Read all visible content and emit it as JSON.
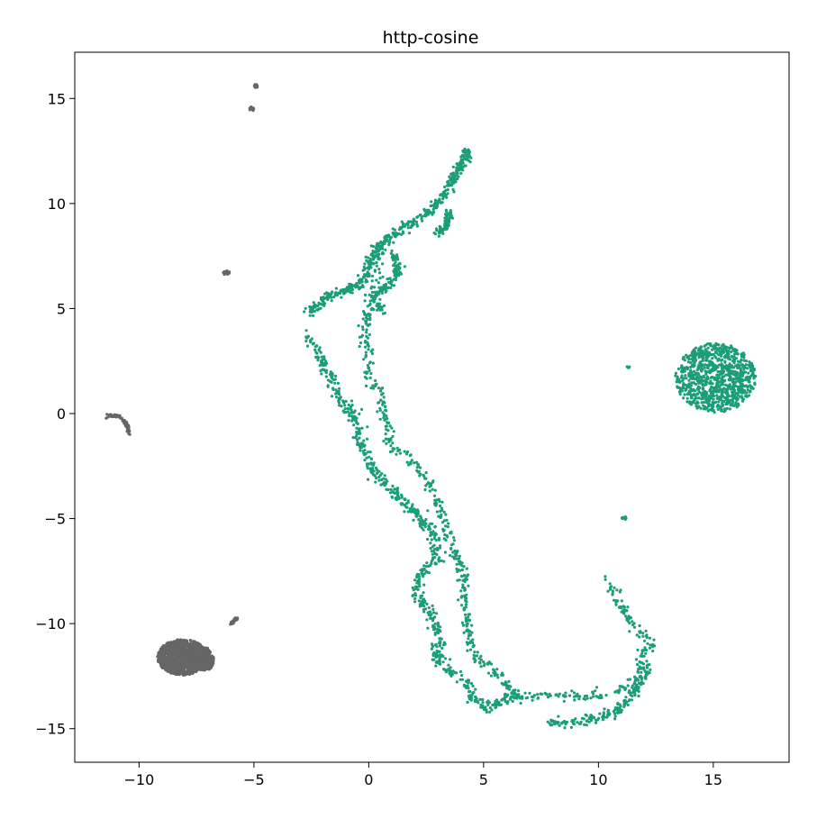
{
  "chart_data": {
    "type": "scatter",
    "title": "http-cosine",
    "xlabel": "",
    "ylabel": "",
    "xlim": [
      -12.8,
      18.3
    ],
    "ylim": [
      -16.6,
      17.2
    ],
    "x_ticks": [
      -10,
      -5,
      0,
      5,
      10,
      15
    ],
    "x_tick_labels": [
      "−10",
      "−5",
      "0",
      "5",
      "10",
      "15"
    ],
    "y_ticks": [
      -15,
      -10,
      -5,
      0,
      5,
      10,
      15
    ],
    "y_tick_labels": [
      "−15",
      "−10",
      "−5",
      "0",
      "5",
      "10",
      "15"
    ],
    "grid": false,
    "legend": "none",
    "colors": {
      "green": "#1b9e77",
      "gray": "#666666"
    },
    "series": [
      {
        "color": "#1b9e77",
        "clusters": [
          {
            "shape": "blob",
            "center": [
              15.1,
              1.7
            ],
            "radius": [
              1.75,
              1.65
            ],
            "points": 900
          },
          {
            "shape": "blob",
            "center": [
              11.1,
              -5.0
            ],
            "radius": [
              0.15,
              0.1
            ],
            "points": 10
          },
          {
            "shape": "blob",
            "center": [
              11.3,
              2.2
            ],
            "radius": [
              0.08,
              0.05
            ],
            "points": 4
          },
          {
            "shape": "curve",
            "points": 480,
            "spread": 0.18,
            "path": [
              [
                4.4,
                12.6
              ],
              [
                3.6,
                11.0
              ],
              [
                3.0,
                10.0
              ],
              [
                2.2,
                9.3
              ],
              [
                1.2,
                8.6
              ],
              [
                0.3,
                7.8
              ],
              [
                -0.3,
                6.2
              ],
              [
                -1.7,
                5.6
              ],
              [
                -2.6,
                4.8
              ]
            ]
          },
          {
            "shape": "curve",
            "points": 650,
            "spread": 0.2,
            "path": [
              [
                0.5,
                7.8
              ],
              [
                0.2,
                6.0
              ],
              [
                -0.2,
                4.0
              ],
              [
                0.0,
                2.0
              ],
              [
                0.6,
                0.5
              ],
              [
                0.9,
                -1.5
              ],
              [
                1.8,
                -2.2
              ],
              [
                2.8,
                -3.5
              ],
              [
                3.2,
                -5.0
              ],
              [
                3.7,
                -6.5
              ],
              [
                4.1,
                -7.5
              ],
              [
                4.2,
                -9.0
              ],
              [
                4.3,
                -10.5
              ],
              [
                4.6,
                -11.5
              ],
              [
                5.4,
                -12.2
              ],
              [
                6.5,
                -13.5
              ],
              [
                7.5,
                -13.4
              ],
              [
                9.0,
                -13.5
              ],
              [
                10.5,
                -13.4
              ],
              [
                11.5,
                -12.8
              ],
              [
                12.0,
                -11.5
              ],
              [
                12.3,
                -10.8
              ],
              [
                11.5,
                -10.0
              ],
              [
                10.8,
                -8.8
              ],
              [
                10.5,
                -7.8
              ]
            ]
          },
          {
            "shape": "curve",
            "points": 650,
            "spread": 0.22,
            "path": [
              [
                -2.7,
                3.7
              ],
              [
                -2.0,
                2.5
              ],
              [
                -1.4,
                1.0
              ],
              [
                -0.7,
                0.0
              ],
              [
                -0.3,
                -1.5
              ],
              [
                0.4,
                -3.0
              ],
              [
                1.4,
                -4.0
              ],
              [
                2.1,
                -4.9
              ],
              [
                2.8,
                -5.6
              ],
              [
                3.0,
                -7.0
              ],
              [
                2.3,
                -7.5
              ],
              [
                2.0,
                -8.5
              ],
              [
                2.7,
                -9.5
              ],
              [
                3.1,
                -10.8
              ],
              [
                2.9,
                -11.5
              ],
              [
                3.5,
                -12.3
              ],
              [
                4.3,
                -12.8
              ],
              [
                4.5,
                -13.6
              ],
              [
                5.2,
                -14.0
              ],
              [
                6.3,
                -13.4
              ]
            ]
          },
          {
            "shape": "curve",
            "points": 180,
            "spread": 0.18,
            "path": [
              [
                7.8,
                -14.6
              ],
              [
                8.8,
                -14.8
              ],
              [
                9.8,
                -14.5
              ],
              [
                10.8,
                -14.2
              ],
              [
                11.6,
                -13.2
              ],
              [
                12.2,
                -12.0
              ]
            ]
          },
          {
            "shape": "curve",
            "points": 120,
            "spread": 0.15,
            "path": [
              [
                1.0,
                7.7
              ],
              [
                1.3,
                6.8
              ],
              [
                0.8,
                6.0
              ],
              [
                0.2,
                5.6
              ],
              [
                0.6,
                4.8
              ]
            ]
          },
          {
            "shape": "curve",
            "points": 90,
            "spread": 0.14,
            "path": [
              [
                3.5,
                9.6
              ],
              [
                3.4,
                9.0
              ],
              [
                3.0,
                8.6
              ]
            ]
          }
        ]
      },
      {
        "color": "#666666",
        "clusters": [
          {
            "shape": "blob",
            "center": [
              -8.1,
              -11.6
            ],
            "radius": [
              1.1,
              0.85
            ],
            "points": 1100
          },
          {
            "shape": "blob",
            "center": [
              -7.1,
              -11.7
            ],
            "radius": [
              0.35,
              0.55
            ],
            "points": 220
          },
          {
            "shape": "blob",
            "center": [
              -4.9,
              15.6
            ],
            "radius": [
              0.1,
              0.08
            ],
            "points": 15
          },
          {
            "shape": "blob",
            "center": [
              -5.1,
              14.5
            ],
            "radius": [
              0.1,
              0.1
            ],
            "points": 15
          },
          {
            "shape": "blob",
            "center": [
              -6.2,
              6.7
            ],
            "radius": [
              0.14,
              0.1
            ],
            "points": 20
          },
          {
            "shape": "curve",
            "points": 30,
            "spread": 0.05,
            "path": [
              [
                -6.0,
                -10.0
              ],
              [
                -5.7,
                -9.7
              ]
            ]
          },
          {
            "shape": "curve",
            "points": 70,
            "spread": 0.06,
            "path": [
              [
                -11.4,
                -0.15
              ],
              [
                -10.9,
                -0.1
              ],
              [
                -10.7,
                -0.3
              ],
              [
                -10.5,
                -0.6
              ],
              [
                -10.4,
                -1.0
              ]
            ]
          }
        ]
      }
    ]
  }
}
